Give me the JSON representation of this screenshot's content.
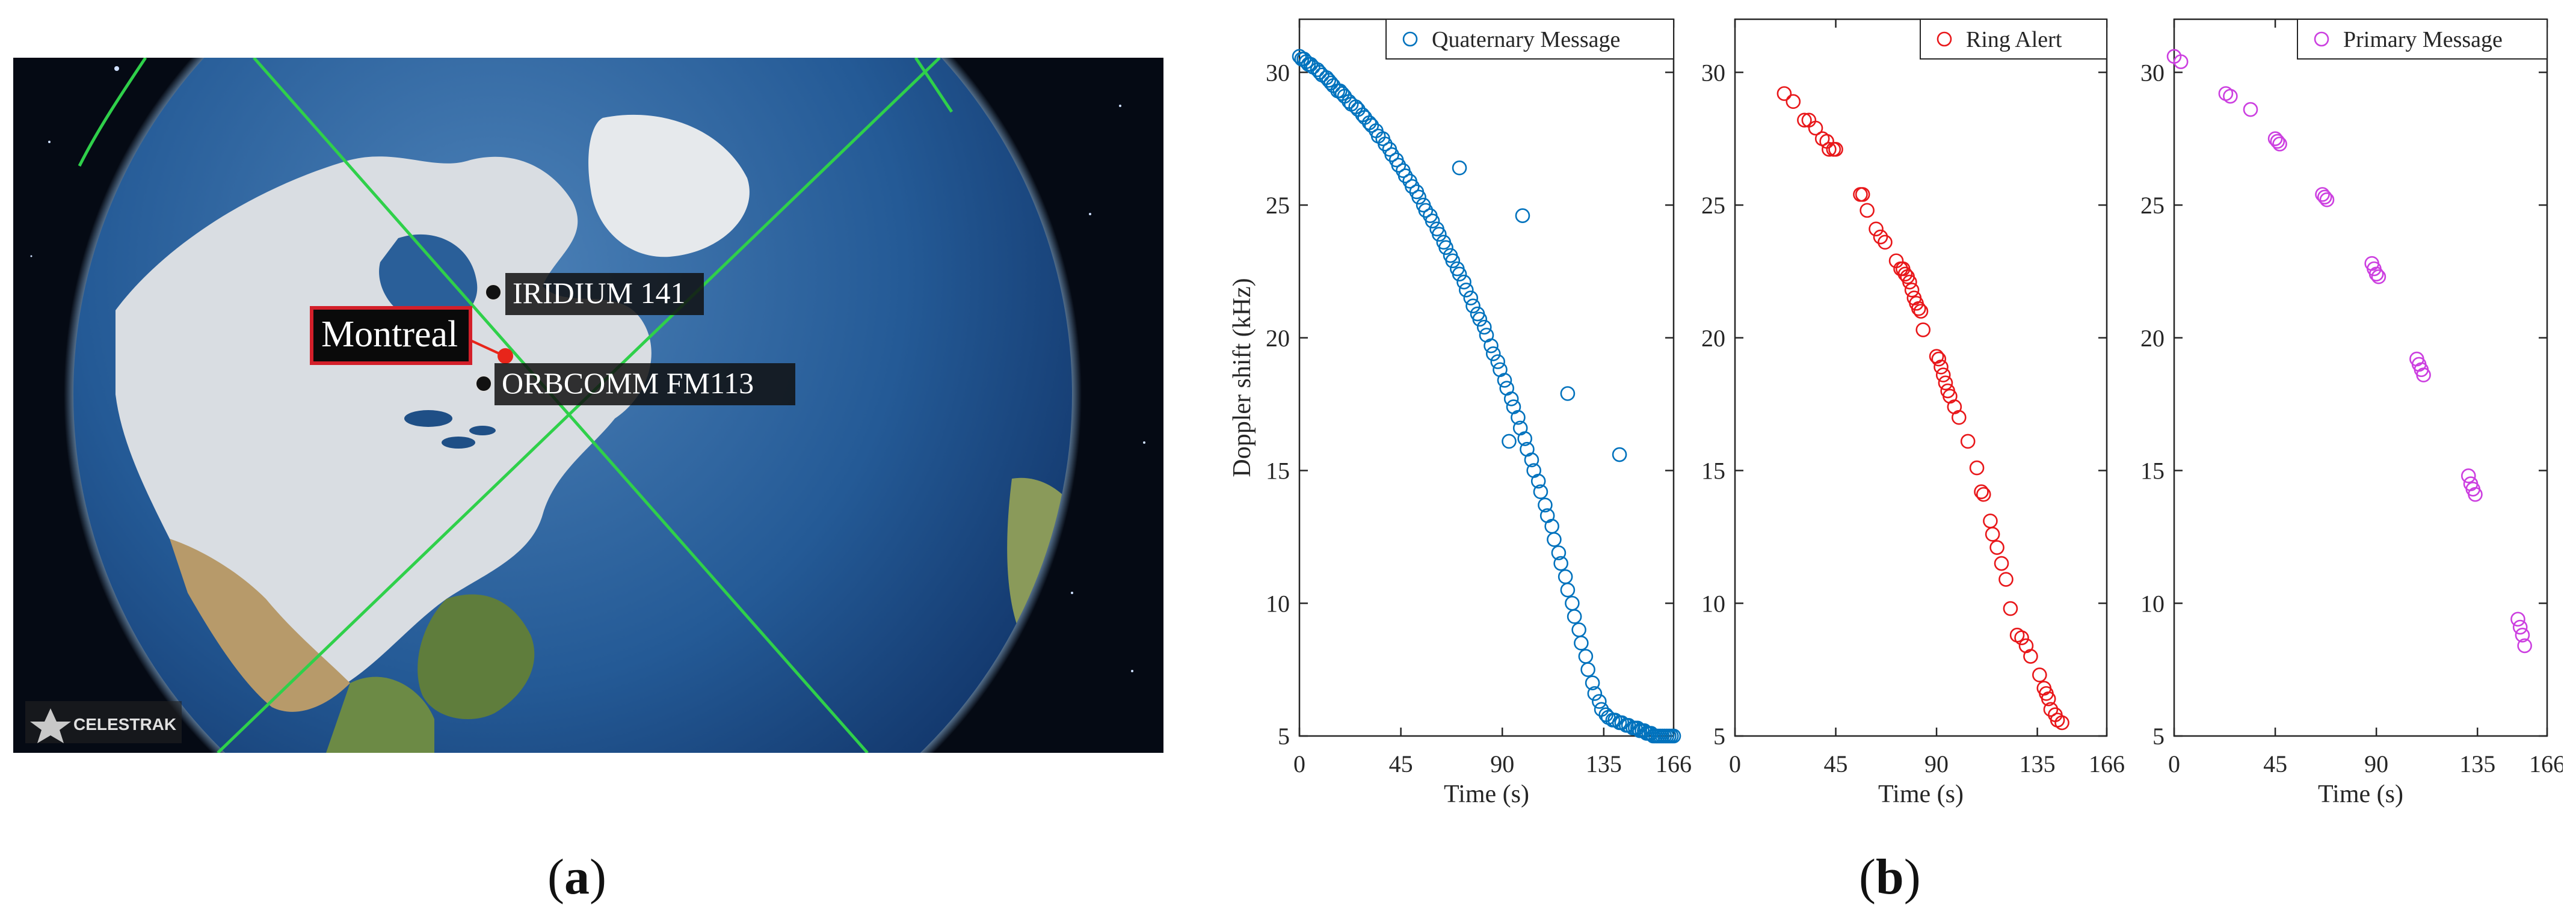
{
  "panel_a": {
    "city_label": "Montreal",
    "satellites": [
      "IRIDIUM 141",
      "ORBCOMM FM113"
    ],
    "logo_text": "CELESTRAK",
    "caption": "a"
  },
  "panel_b": {
    "caption": "b"
  },
  "colors": {
    "quaternary": "#0072BD",
    "ring": "#E8171A",
    "primary": "#CC3FE0",
    "orbit": "#2FD04A",
    "city_marker": "#E8251A"
  },
  "chart_data": [
    {
      "type": "scatter",
      "title": "",
      "xlabel": "Time (s)",
      "ylabel": "Doppler shift (kHz)",
      "xlim": [
        0,
        166
      ],
      "ylim": [
        5,
        32
      ],
      "xticks": [
        0,
        45,
        90,
        135,
        166
      ],
      "yticks": [
        5,
        10,
        15,
        20,
        25,
        30
      ],
      "legend": "top-right",
      "series": [
        {
          "name": "Quaternary Message",
          "color": "#0072BD",
          "marker": "circle-open",
          "x": [
            0,
            1,
            2,
            3,
            4,
            5,
            6,
            8,
            9,
            10,
            12,
            13,
            14,
            15,
            17,
            18,
            19,
            20,
            22,
            23,
            25,
            26,
            28,
            29,
            31,
            32,
            34,
            35,
            37,
            38,
            40,
            41,
            43,
            44,
            46,
            47,
            49,
            50,
            52,
            53,
            55,
            56,
            58,
            59,
            61,
            62,
            64,
            65,
            67,
            68,
            70,
            71,
            73,
            74,
            76,
            77,
            79,
            80,
            82,
            83,
            85,
            86,
            88,
            89,
            91,
            92,
            94,
            95,
            97,
            98,
            100,
            101,
            103,
            104,
            106,
            107,
            109,
            110,
            112,
            113,
            115,
            116,
            118,
            119,
            121,
            122,
            124,
            125,
            127,
            128,
            130,
            131,
            133,
            134,
            136,
            137,
            139,
            140,
            142,
            143,
            145,
            146,
            148,
            149,
            150,
            151,
            152,
            153,
            154,
            155,
            156,
            157,
            158,
            159,
            160,
            161,
            162,
            163,
            164,
            165,
            166,
            71,
            99,
            93,
            119,
            142
          ],
          "y": [
            30.6,
            30.5,
            30.5,
            30.4,
            30.3,
            30.3,
            30.2,
            30.1,
            30.0,
            29.9,
            29.8,
            29.7,
            29.6,
            29.5,
            29.3,
            29.3,
            29.2,
            29.1,
            28.9,
            28.8,
            28.7,
            28.6,
            28.4,
            28.3,
            28.1,
            28.0,
            27.8,
            27.6,
            27.5,
            27.3,
            27.1,
            26.9,
            26.7,
            26.5,
            26.3,
            26.1,
            25.9,
            25.7,
            25.5,
            25.3,
            25.0,
            24.8,
            24.6,
            24.4,
            24.1,
            23.9,
            23.6,
            23.4,
            23.1,
            22.9,
            22.6,
            22.4,
            22.1,
            21.8,
            21.5,
            21.2,
            20.9,
            20.7,
            20.4,
            20.1,
            19.7,
            19.4,
            19.1,
            18.8,
            18.4,
            18.1,
            17.7,
            17.4,
            17.0,
            16.6,
            16.2,
            15.8,
            15.4,
            15.0,
            14.6,
            14.2,
            13.7,
            13.3,
            12.9,
            12.4,
            11.9,
            11.5,
            11.0,
            10.5,
            10.0,
            9.5,
            9.0,
            8.5,
            8.0,
            7.5,
            7.0,
            6.6,
            6.3,
            6.0,
            5.8,
            5.7,
            5.6,
            5.6,
            5.5,
            5.5,
            5.4,
            5.4,
            5.3,
            5.3,
            5.3,
            5.2,
            5.2,
            5.2,
            5.1,
            5.1,
            5.1,
            5.0,
            5.0,
            5.0,
            5.0,
            5.0,
            5.0,
            5.0,
            5.0,
            5.0,
            5.0,
            26.4,
            24.6,
            16.1,
            17.9,
            15.6
          ]
        }
      ]
    },
    {
      "type": "scatter",
      "title": "",
      "xlabel": "Time (s)",
      "ylabel": "",
      "xlim": [
        0,
        166
      ],
      "ylim": [
        5,
        32
      ],
      "xticks": [
        0,
        45,
        90,
        135,
        166
      ],
      "yticks": [
        5,
        10,
        15,
        20,
        25,
        30
      ],
      "legend": "top-right",
      "series": [
        {
          "name": "Ring Alert",
          "color": "#E8171A",
          "marker": "circle-open",
          "x": [
            22,
            26,
            31,
            33,
            36,
            39,
            41,
            42,
            44,
            45,
            56,
            57,
            59,
            63,
            65,
            67,
            72,
            74,
            75,
            76,
            77,
            78,
            79,
            80,
            81,
            82,
            83,
            84,
            90,
            91,
            92,
            93,
            94,
            95,
            96,
            98,
            100,
            104,
            108,
            110,
            111,
            114,
            115,
            117,
            119,
            121,
            123,
            126,
            128,
            130,
            132,
            136,
            138,
            139,
            140,
            141,
            143,
            144,
            146
          ],
          "y": [
            29.2,
            28.9,
            28.2,
            28.2,
            27.9,
            27.5,
            27.4,
            27.1,
            27.1,
            27.1,
            25.4,
            25.4,
            24.8,
            24.1,
            23.8,
            23.6,
            22.9,
            22.6,
            22.6,
            22.4,
            22.3,
            22.1,
            21.8,
            21.5,
            21.3,
            21.1,
            21.0,
            20.3,
            19.3,
            19.2,
            18.9,
            18.6,
            18.3,
            18.0,
            17.8,
            17.4,
            17.0,
            16.1,
            15.1,
            14.2,
            14.1,
            13.1,
            12.6,
            12.1,
            11.5,
            10.9,
            9.8,
            8.8,
            8.7,
            8.4,
            8.0,
            7.3,
            6.8,
            6.6,
            6.4,
            6.0,
            5.8,
            5.6,
            5.5
          ]
        }
      ]
    },
    {
      "type": "scatter",
      "title": "",
      "xlabel": "Time (s)",
      "ylabel": "",
      "xlim": [
        0,
        166
      ],
      "ylim": [
        5,
        32
      ],
      "xticks": [
        0,
        45,
        90,
        135,
        166
      ],
      "yticks": [
        5,
        10,
        15,
        20,
        25,
        30
      ],
      "legend": "top-right",
      "series": [
        {
          "name": "Primary Message",
          "color": "#CC3FE0",
          "marker": "circle-open",
          "x": [
            0,
            3,
            23,
            25,
            34,
            45,
            46,
            47,
            66,
            67,
            68,
            88,
            89,
            90,
            91,
            108,
            109,
            110,
            111,
            131,
            132,
            133,
            134,
            153,
            154,
            155,
            156
          ],
          "y": [
            30.6,
            30.4,
            29.2,
            29.1,
            28.6,
            27.5,
            27.4,
            27.3,
            25.4,
            25.3,
            25.2,
            22.8,
            22.6,
            22.4,
            22.3,
            19.2,
            19.0,
            18.8,
            18.6,
            14.8,
            14.5,
            14.3,
            14.1,
            9.4,
            9.1,
            8.8,
            8.4
          ]
        }
      ]
    }
  ]
}
